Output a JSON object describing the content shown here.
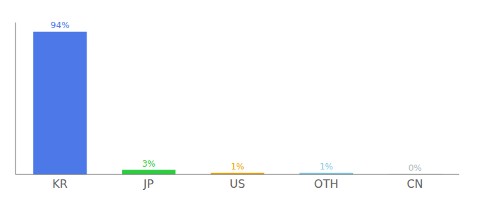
{
  "chart_data": {
    "type": "bar",
    "categories": [
      "KR",
      "JP",
      "US",
      "OTH",
      "CN"
    ],
    "values": [
      94,
      3,
      1,
      1,
      0.2
    ],
    "value_labels": [
      "94%",
      "3%",
      "1%",
      "1%",
      "0%"
    ],
    "colors": [
      "#4d79e8",
      "#2ecc40",
      "#f0a500",
      "#7ec8e3",
      "#b0b8c0"
    ],
    "ylim": [
      0,
      100
    ],
    "data_labels": true,
    "tick_labels": "x",
    "grid": false
  }
}
